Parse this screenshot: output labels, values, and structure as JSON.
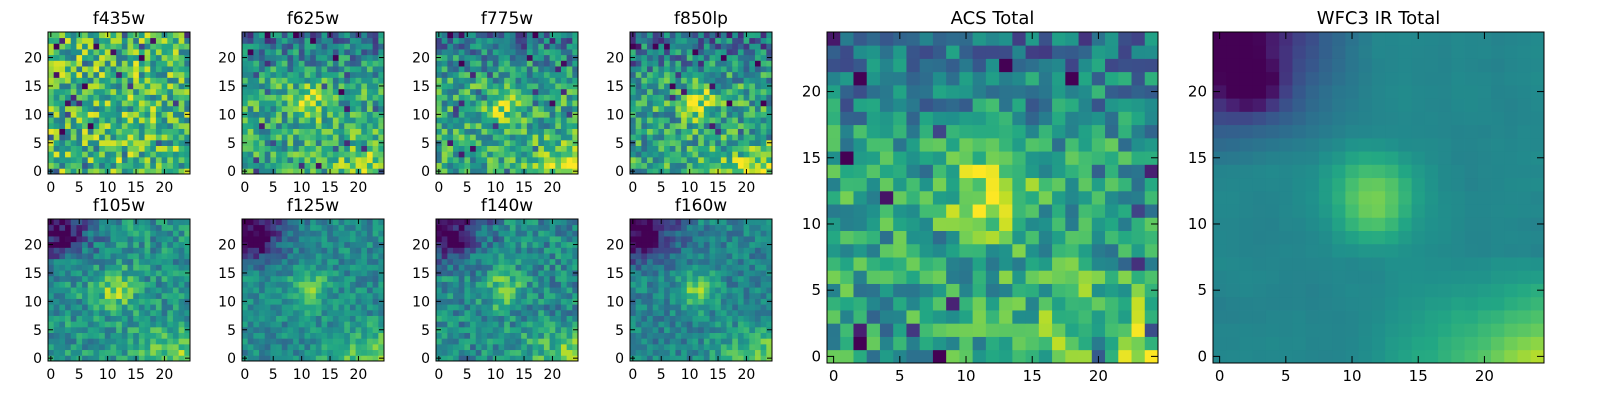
{
  "figure": {
    "colormap": "viridis",
    "grid": false,
    "legend": "none"
  },
  "chart_data": [
    {
      "type": "heatmap",
      "title": "f435w",
      "x_range": [
        0,
        24
      ],
      "y_range": [
        0,
        24
      ],
      "xticks": [
        "0",
        "5",
        "10",
        "15",
        "20"
      ],
      "yticks": [
        "0",
        "5",
        "10",
        "15",
        "20"
      ],
      "grid_size": 25,
      "pattern": "noise",
      "seed": 11,
      "level": 0.68,
      "bump": 0.0,
      "spread": 0.3
    },
    {
      "type": "heatmap",
      "title": "f625w",
      "x_range": [
        0,
        24
      ],
      "y_range": [
        0,
        24
      ],
      "xticks": [
        "0",
        "5",
        "10",
        "15",
        "20"
      ],
      "yticks": [
        "0",
        "5",
        "10",
        "15",
        "20"
      ],
      "grid_size": 25,
      "pattern": "blob",
      "seed": 23,
      "level": 0.6,
      "bump": 0.25,
      "spread": 0.24
    },
    {
      "type": "heatmap",
      "title": "f775w",
      "x_range": [
        0,
        24
      ],
      "y_range": [
        0,
        24
      ],
      "xticks": [
        "0",
        "5",
        "10",
        "15",
        "20"
      ],
      "yticks": [
        "0",
        "5",
        "10",
        "15",
        "20"
      ],
      "grid_size": 25,
      "pattern": "blob",
      "seed": 37,
      "level": 0.6,
      "bump": 0.28,
      "spread": 0.24
    },
    {
      "type": "heatmap",
      "title": "f850lp",
      "x_range": [
        0,
        24
      ],
      "y_range": [
        0,
        24
      ],
      "xticks": [
        "0",
        "5",
        "10",
        "15",
        "20"
      ],
      "yticks": [
        "0",
        "5",
        "10",
        "15",
        "20"
      ],
      "grid_size": 25,
      "pattern": "blob",
      "seed": 41,
      "level": 0.58,
      "bump": 0.3,
      "spread": 0.26
    },
    {
      "type": "heatmap",
      "title": "f105w",
      "x_range": [
        0,
        24
      ],
      "y_range": [
        0,
        24
      ],
      "xticks": [
        "0",
        "5",
        "10",
        "15",
        "20"
      ],
      "yticks": [
        "0",
        "5",
        "10",
        "15",
        "20"
      ],
      "grid_size": 25,
      "pattern": "ir",
      "seed": 53,
      "level": 0.52,
      "bump": 0.3,
      "spread": 0.18
    },
    {
      "type": "heatmap",
      "title": "f125w",
      "x_range": [
        0,
        24
      ],
      "y_range": [
        0,
        24
      ],
      "xticks": [
        "0",
        "5",
        "10",
        "15",
        "20"
      ],
      "yticks": [
        "0",
        "5",
        "10",
        "15",
        "20"
      ],
      "grid_size": 25,
      "pattern": "ir",
      "seed": 67,
      "level": 0.48,
      "bump": 0.32,
      "spread": 0.14
    },
    {
      "type": "heatmap",
      "title": "f140w",
      "x_range": [
        0,
        24
      ],
      "y_range": [
        0,
        24
      ],
      "xticks": [
        "0",
        "5",
        "10",
        "15",
        "20"
      ],
      "yticks": [
        "0",
        "5",
        "10",
        "15",
        "20"
      ],
      "grid_size": 25,
      "pattern": "ir",
      "seed": 79,
      "level": 0.48,
      "bump": 0.32,
      "spread": 0.18
    },
    {
      "type": "heatmap",
      "title": "f160w",
      "x_range": [
        0,
        24
      ],
      "y_range": [
        0,
        24
      ],
      "xticks": [
        "0",
        "5",
        "10",
        "15",
        "20"
      ],
      "yticks": [
        "0",
        "5",
        "10",
        "15",
        "20"
      ],
      "grid_size": 25,
      "pattern": "ir",
      "seed": 83,
      "level": 0.45,
      "bump": 0.35,
      "spread": 0.14
    },
    {
      "type": "heatmap",
      "title": "ACS Total",
      "x_range": [
        0,
        24
      ],
      "y_range": [
        0,
        24
      ],
      "xticks": [
        "0",
        "5",
        "10",
        "15",
        "20"
      ],
      "yticks": [
        "0",
        "5",
        "10",
        "15",
        "20"
      ],
      "grid_size": 25,
      "pattern": "blob",
      "seed": 97,
      "level": 0.58,
      "bump": 0.32,
      "spread": 0.22
    },
    {
      "type": "heatmap",
      "title": "WFC3 IR Total",
      "x_range": [
        0,
        24
      ],
      "y_range": [
        0,
        24
      ],
      "xticks": [
        "0",
        "5",
        "10",
        "15",
        "20"
      ],
      "yticks": [
        "0",
        "5",
        "10",
        "15",
        "20"
      ],
      "grid_size": 25,
      "pattern": "ir",
      "seed": 101,
      "level": 0.46,
      "bump": 0.36,
      "spread": 0.05
    }
  ]
}
